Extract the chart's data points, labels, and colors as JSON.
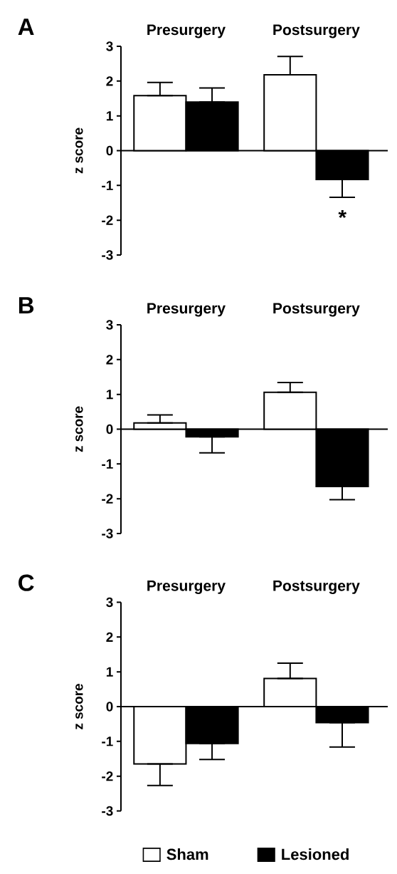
{
  "chart_data": [
    {
      "type": "bar",
      "title": "A",
      "categories": [
        "Presurgery",
        "Postsurgery"
      ],
      "ylabel": "z score",
      "ylim": [
        -3,
        3
      ],
      "yticks": [
        -3,
        -2,
        -1,
        0,
        1,
        2,
        3
      ],
      "series": [
        {
          "color": "#ffffff",
          "values": [
            1.58,
            2.18
          ],
          "errors": [
            [
              1.58,
              1.96
            ],
            [
              2.18,
              2.71
            ]
          ]
        },
        {
          "color": "#000000",
          "values": [
            1.4,
            -0.83
          ],
          "errors": [
            [
              1.4,
              1.8
            ],
            [
              -1.34,
              -0.83
            ]
          ]
        }
      ],
      "annotations": [
        "*"
      ]
    },
    {
      "type": "bar",
      "title": "B",
      "categories": [
        "Presurgery",
        "Postsurgery"
      ],
      "ylabel": "z score",
      "ylim": [
        -3,
        3
      ],
      "yticks": [
        -3,
        -2,
        -1,
        0,
        1,
        2,
        3
      ],
      "series": [
        {
          "color": "#ffffff",
          "values": [
            0.18,
            1.06
          ],
          "errors": [
            [
              0.18,
              0.41
            ],
            [
              1.06,
              1.34
            ]
          ]
        },
        {
          "color": "#000000",
          "values": [
            -0.22,
            -1.65
          ],
          "errors": [
            [
              -0.68,
              -0.22
            ],
            [
              -2.03,
              -1.65
            ]
          ]
        }
      ]
    },
    {
      "type": "bar",
      "title": "C",
      "categories": [
        "Presurgery",
        "Postsurgery"
      ],
      "ylabel": "z score",
      "ylim": [
        -3,
        3
      ],
      "yticks": [
        -3,
        -2,
        -1,
        0,
        1,
        2,
        3
      ],
      "legend": "bottom",
      "series": [
        {
          "name": "Sham",
          "color": "#ffffff",
          "values": [
            -1.65,
            0.81
          ],
          "errors": [
            [
              -2.27,
              -1.65
            ],
            [
              0.81,
              1.25
            ]
          ]
        },
        {
          "name": "Lesioned",
          "color": "#000000",
          "values": [
            -1.06,
            -0.46
          ],
          "errors": [
            [
              -1.52,
              -1.06
            ],
            [
              -1.16,
              -0.46
            ]
          ]
        }
      ]
    }
  ]
}
